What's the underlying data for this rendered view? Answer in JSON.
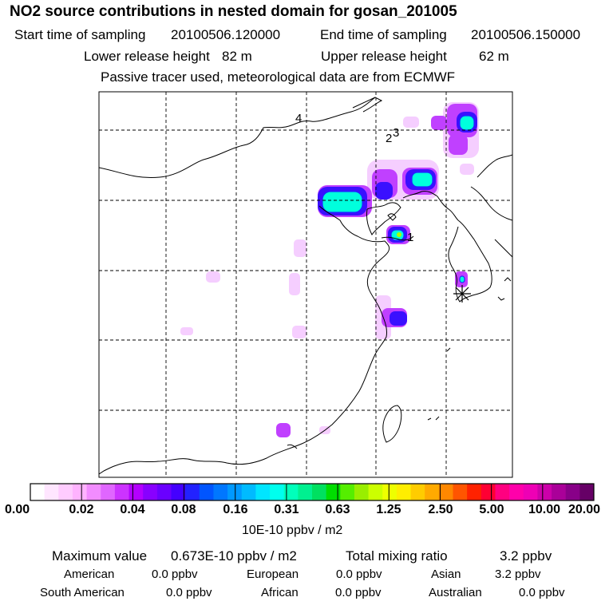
{
  "header": {
    "title": "NO2 source contributions in nested domain for gosan_201005",
    "start_label": "Start time of sampling",
    "start_value": "20100506.120000",
    "end_label": "End time of sampling",
    "end_value": "20100506.150000",
    "lower_label": "Lower release height",
    "lower_value": "82 m",
    "upper_label": "Upper release height",
    "upper_value": "62 m",
    "tracer_note": "Passive tracer used, meteorological data are from ECMWF"
  },
  "map": {
    "trajectory_markers": [
      "4",
      "2",
      "3",
      "1"
    ],
    "receptor_symbol": "asterisk"
  },
  "colorbar": {
    "tick_labels": [
      "0.00",
      "0.02",
      "0.04",
      "0.08",
      "0.16",
      "0.31",
      "0.63",
      "1.25",
      "2.50",
      "5.00",
      "10.00",
      "20.00"
    ],
    "unit": "10E-10 ppbv / m2",
    "colors": [
      "#ffffff",
      "#ffe6ff",
      "#ffccff",
      "#ffb3ff",
      "#f28cff",
      "#e066ff",
      "#cc33ff",
      "#b300ff",
      "#8800ff",
      "#6a00ff",
      "#4400ff",
      "#2222ff",
      "#0055ff",
      "#0077ff",
      "#0099ff",
      "#00bbff",
      "#00e5ff",
      "#00ffee",
      "#00ffbb",
      "#00f090",
      "#00e060",
      "#00dd00",
      "#55ee00",
      "#99ee00",
      "#ccff00",
      "#eeff00",
      "#ffee00",
      "#ffcc00",
      "#ffaa00",
      "#ff8800",
      "#ff5500",
      "#ff2200",
      "#ff0033",
      "#ff0080",
      "#ff00aa",
      "#ee00b5",
      "#cc00aa",
      "#aa0099",
      "#880088",
      "#660066"
    ]
  },
  "footer": {
    "max_label": "Maximum value",
    "max_value": "0.673E-10 ppbv / m2",
    "total_label": "Total mixing ratio",
    "total_value": "3.2 ppbv",
    "american_label": "American",
    "american_value": "0.0 ppbv",
    "european_label": "European",
    "european_value": "0.0 ppbv",
    "asian_label": "Asian",
    "asian_value": "3.2 ppbv",
    "south_american_label": "South American",
    "south_american_value": "0.0 ppbv",
    "african_label": "African",
    "african_value": "0.0 ppbv",
    "australian_label": "Australian",
    "australian_value": "0.0 ppbv"
  }
}
